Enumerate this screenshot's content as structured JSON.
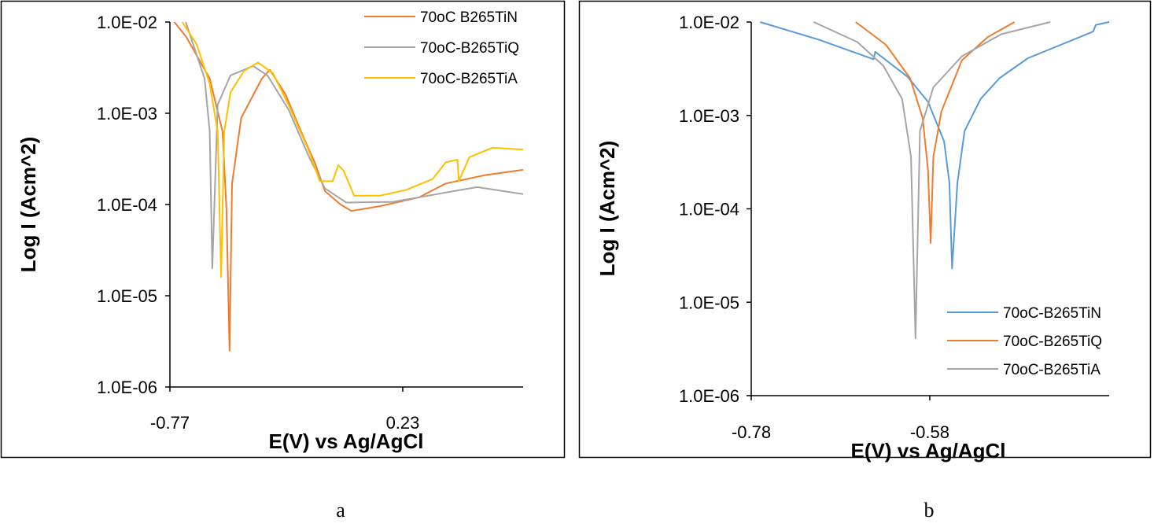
{
  "chart_data": [
    {
      "type": "line",
      "panel_caption": "a",
      "xlabel": "E(V) vs Ag/AgCl",
      "ylabel": "Log I (Acm^2)",
      "yscale": "log",
      "xlim": [
        -0.77,
        0.747
      ],
      "ylim": [
        1e-06,
        0.01
      ],
      "x_ticks": [
        -0.77,
        0.23
      ],
      "x_tick_labels": [
        "-0.77",
        "0.23"
      ],
      "y_ticks": [
        0.01,
        0.001,
        0.0001,
        1e-05,
        1e-06
      ],
      "y_tick_labels": [
        "1.0E-02",
        "1.0E-03",
        "1.0E-04",
        "1.0E-05",
        "1.0E-06"
      ],
      "legend_position": "top-right",
      "grid": false,
      "series": [
        {
          "name": "70oC B265TiN",
          "color": "#ED7D31",
          "x": [
            -0.751,
            -0.7,
            -0.599,
            -0.544,
            -0.527,
            -0.514,
            -0.503,
            -0.464,
            -0.375,
            -0.341,
            -0.273,
            -0.193,
            -0.148,
            -0.104,
            -0.037,
            0.009,
            0.132,
            0.301,
            0.415,
            0.584,
            0.747
          ],
          "y": [
            0.01,
            0.0069,
            0.0024,
            0.00063,
            8.7e-05,
            2.5e-06,
            0.00017,
            0.00089,
            0.0024,
            0.003,
            0.0016,
            0.00052,
            0.00029,
            0.00014,
            0.0001,
            8.5e-05,
            9.6e-05,
            0.00012,
            0.00017,
            0.00021,
            0.00024
          ]
        },
        {
          "name": "70oC-B265TiQ",
          "color": "#A5A5A5",
          "x": [
            -0.702,
            -0.621,
            -0.599,
            -0.588,
            -0.565,
            -0.51,
            -0.413,
            -0.351,
            -0.261,
            -0.172,
            -0.104,
            -0.013,
            0.189,
            0.301,
            0.449,
            0.55,
            0.747
          ],
          "y": [
            0.01,
            0.0024,
            0.00063,
            2e-05,
            0.00124,
            0.0026,
            0.0033,
            0.0026,
            0.0011,
            0.00033,
            0.00015,
            0.000105,
            0.000107,
            0.00012,
            0.00014,
            0.000155,
            0.00013
          ]
        },
        {
          "name": "70oC-B265TiA",
          "color": "#FFC000",
          "x": [
            -0.717,
            -0.655,
            -0.599,
            -0.565,
            -0.55,
            -0.537,
            -0.51,
            -0.452,
            -0.392,
            -0.328,
            -0.261,
            -0.172,
            -0.126,
            -0.071,
            -0.047,
            -0.024,
            0.021,
            0.132,
            0.246,
            0.358,
            0.415,
            0.465,
            0.471,
            0.516,
            0.617,
            0.747
          ],
          "y": [
            0.01,
            0.0057,
            0.0021,
            0.00063,
            1.6e-05,
            0.00063,
            0.0017,
            0.0029,
            0.0036,
            0.00275,
            0.00124,
            0.00038,
            0.00018,
            0.00018,
            0.00027,
            0.000235,
            0.000125,
            0.000125,
            0.000145,
            0.00019,
            0.00029,
            0.00031,
            0.00018,
            0.00033,
            0.00042,
            0.0004
          ]
        }
      ]
    },
    {
      "type": "line",
      "panel_caption": "b",
      "xlabel": "E(V) vs Ag/AgCl",
      "ylabel": "Log I (Acm^2)",
      "yscale": "log",
      "xlim": [
        -0.78,
        -0.379
      ],
      "ylim": [
        1e-06,
        0.01
      ],
      "x_ticks": [
        -0.78,
        -0.58
      ],
      "x_tick_labels": [
        "-0.78",
        "-0.58"
      ],
      "y_ticks": [
        0.01,
        0.001,
        0.0001,
        1e-05,
        1e-06
      ],
      "y_tick_labels": [
        "1.0E-02",
        "1.0E-03",
        "1.0E-04",
        "1.0E-05",
        "1.0E-06"
      ],
      "legend_position": "bottom-right",
      "grid": false,
      "series": [
        {
          "name": "70oC-B265TiN",
          "color": "#5B9BD5",
          "x": [
            -0.77,
            -0.705,
            -0.643,
            -0.641,
            -0.605,
            -0.582,
            -0.564,
            -0.558,
            -0.555,
            -0.549,
            -0.541,
            -0.523,
            -0.502,
            -0.47,
            -0.397,
            -0.394,
            -0.379
          ],
          "y": [
            0.01,
            0.0065,
            0.004,
            0.0048,
            0.0026,
            0.0014,
            0.00053,
            0.00019,
            2.3e-05,
            0.00019,
            0.00068,
            0.0015,
            0.0025,
            0.0041,
            0.0079,
            0.0093,
            0.01
          ]
        },
        {
          "name": "70oC-B265TiQ",
          "color": "#ED7D31",
          "x": [
            -0.663,
            -0.629,
            -0.602,
            -0.588,
            -0.582,
            -0.579,
            -0.576,
            -0.567,
            -0.544,
            -0.515,
            -0.485
          ],
          "y": [
            0.01,
            0.0057,
            0.0025,
            0.00094,
            0.00026,
            4.3e-05,
            0.00036,
            0.0011,
            0.0039,
            0.0069,
            0.01
          ]
        },
        {
          "name": "70oC-B265TiA",
          "color": "#A5A5A5",
          "x": [
            -0.71,
            -0.661,
            -0.632,
            -0.611,
            -0.601,
            -0.596,
            -0.591,
            -0.576,
            -0.544,
            -0.5,
            -0.445
          ],
          "y": [
            0.01,
            0.0061,
            0.0034,
            0.0015,
            0.00036,
            4.1e-06,
            0.00068,
            0.002,
            0.0043,
            0.0074,
            0.01
          ]
        }
      ]
    }
  ]
}
